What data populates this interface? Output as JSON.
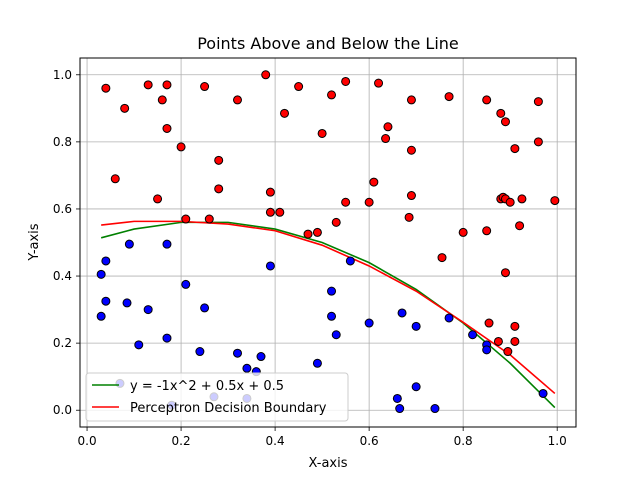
{
  "chart_data": {
    "type": "scatter",
    "title": "Points Above and Below the Line",
    "xlabel": "X-axis",
    "ylabel": "Y-axis",
    "xlim": [
      -0.015,
      1.04
    ],
    "ylim": [
      -0.05,
      1.05
    ],
    "grid": true,
    "legend_position": "lower-left",
    "xticks": [
      0.0,
      0.2,
      0.4,
      0.6,
      0.8,
      1.0
    ],
    "xtick_labels": [
      "0.0",
      "0.2",
      "0.4",
      "0.6",
      "0.8",
      "1.0"
    ],
    "yticks": [
      0.0,
      0.2,
      0.4,
      0.6,
      0.8,
      1.0
    ],
    "ytick_labels": [
      "0.0",
      "0.2",
      "0.4",
      "0.6",
      "0.8",
      "1.0"
    ],
    "colors": {
      "above": "#ff0000",
      "below": "#0000ff",
      "true_line": "#008000",
      "perceptron": "#ff0000",
      "grid": "#b0b0b0"
    },
    "points_above": [
      [
        0.04,
        0.96
      ],
      [
        0.08,
        0.9
      ],
      [
        0.13,
        0.97
      ],
      [
        0.17,
        0.97
      ],
      [
        0.16,
        0.925
      ],
      [
        0.25,
        0.965
      ],
      [
        0.32,
        0.925
      ],
      [
        0.38,
        1.0
      ],
      [
        0.45,
        0.965
      ],
      [
        0.52,
        0.94
      ],
      [
        0.55,
        0.98
      ],
      [
        0.62,
        0.975
      ],
      [
        0.69,
        0.925
      ],
      [
        0.77,
        0.935
      ],
      [
        0.85,
        0.925
      ],
      [
        0.88,
        0.885
      ],
      [
        0.89,
        0.86
      ],
      [
        0.96,
        0.92
      ],
      [
        0.17,
        0.84
      ],
      [
        0.42,
        0.885
      ],
      [
        0.5,
        0.825
      ],
      [
        0.64,
        0.845
      ],
      [
        0.635,
        0.81
      ],
      [
        0.96,
        0.8
      ],
      [
        0.91,
        0.78
      ],
      [
        0.2,
        0.785
      ],
      [
        0.28,
        0.745
      ],
      [
        0.69,
        0.775
      ],
      [
        0.06,
        0.69
      ],
      [
        0.28,
        0.66
      ],
      [
        0.39,
        0.65
      ],
      [
        0.15,
        0.63
      ],
      [
        0.61,
        0.68
      ],
      [
        0.69,
        0.64
      ],
      [
        0.55,
        0.62
      ],
      [
        0.6,
        0.62
      ],
      [
        0.88,
        0.63
      ],
      [
        0.885,
        0.635
      ],
      [
        0.89,
        0.63
      ],
      [
        0.9,
        0.62
      ],
      [
        0.925,
        0.63
      ],
      [
        0.995,
        0.625
      ],
      [
        0.39,
        0.59
      ],
      [
        0.41,
        0.59
      ],
      [
        0.21,
        0.57
      ],
      [
        0.26,
        0.57
      ],
      [
        0.53,
        0.56
      ],
      [
        0.685,
        0.575
      ],
      [
        0.47,
        0.525
      ],
      [
        0.49,
        0.53
      ],
      [
        0.8,
        0.53
      ],
      [
        0.85,
        0.535
      ],
      [
        0.92,
        0.55
      ],
      [
        0.755,
        0.455
      ],
      [
        0.89,
        0.41
      ],
      [
        0.855,
        0.26
      ],
      [
        0.91,
        0.25
      ],
      [
        0.875,
        0.205
      ],
      [
        0.91,
        0.205
      ],
      [
        0.895,
        0.175
      ]
    ],
    "points_below": [
      [
        0.04,
        0.445
      ],
      [
        0.03,
        0.405
      ],
      [
        0.09,
        0.495
      ],
      [
        0.17,
        0.495
      ],
      [
        0.39,
        0.43
      ],
      [
        0.56,
        0.445
      ],
      [
        0.21,
        0.375
      ],
      [
        0.04,
        0.325
      ],
      [
        0.085,
        0.32
      ],
      [
        0.03,
        0.28
      ],
      [
        0.13,
        0.3
      ],
      [
        0.25,
        0.305
      ],
      [
        0.52,
        0.355
      ],
      [
        0.52,
        0.28
      ],
      [
        0.6,
        0.26
      ],
      [
        0.11,
        0.195
      ],
      [
        0.17,
        0.215
      ],
      [
        0.24,
        0.175
      ],
      [
        0.32,
        0.17
      ],
      [
        0.37,
        0.16
      ],
      [
        0.34,
        0.125
      ],
      [
        0.36,
        0.115
      ],
      [
        0.49,
        0.14
      ],
      [
        0.53,
        0.225
      ],
      [
        0.67,
        0.29
      ],
      [
        0.7,
        0.25
      ],
      [
        0.77,
        0.275
      ],
      [
        0.82,
        0.225
      ],
      [
        0.85,
        0.195
      ],
      [
        0.85,
        0.18
      ],
      [
        0.07,
        0.08
      ],
      [
        0.18,
        0.015
      ],
      [
        0.27,
        0.04
      ],
      [
        0.34,
        0.035
      ],
      [
        0.66,
        0.035
      ],
      [
        0.665,
        0.005
      ],
      [
        0.7,
        0.07
      ],
      [
        0.74,
        0.005
      ],
      [
        0.97,
        0.05
      ]
    ],
    "series": [
      {
        "name": "y = -1x^2 + 0.5x + 0.5",
        "kind": "line",
        "color": "#008000",
        "x": [
          0.03,
          0.1,
          0.2,
          0.3,
          0.4,
          0.5,
          0.6,
          0.7,
          0.8,
          0.9,
          0.995
        ],
        "y": [
          0.514,
          0.54,
          0.56,
          0.56,
          0.54,
          0.5,
          0.44,
          0.36,
          0.26,
          0.14,
          0.008
        ]
      },
      {
        "name": "Perceptron Decision Boundary",
        "kind": "line",
        "color": "#ff0000",
        "x": [
          0.03,
          0.1,
          0.2,
          0.3,
          0.4,
          0.5,
          0.6,
          0.7,
          0.8,
          0.9,
          0.995
        ],
        "y": [
          0.552,
          0.563,
          0.563,
          0.555,
          0.535,
          0.492,
          0.43,
          0.355,
          0.262,
          0.165,
          0.05
        ]
      }
    ]
  }
}
